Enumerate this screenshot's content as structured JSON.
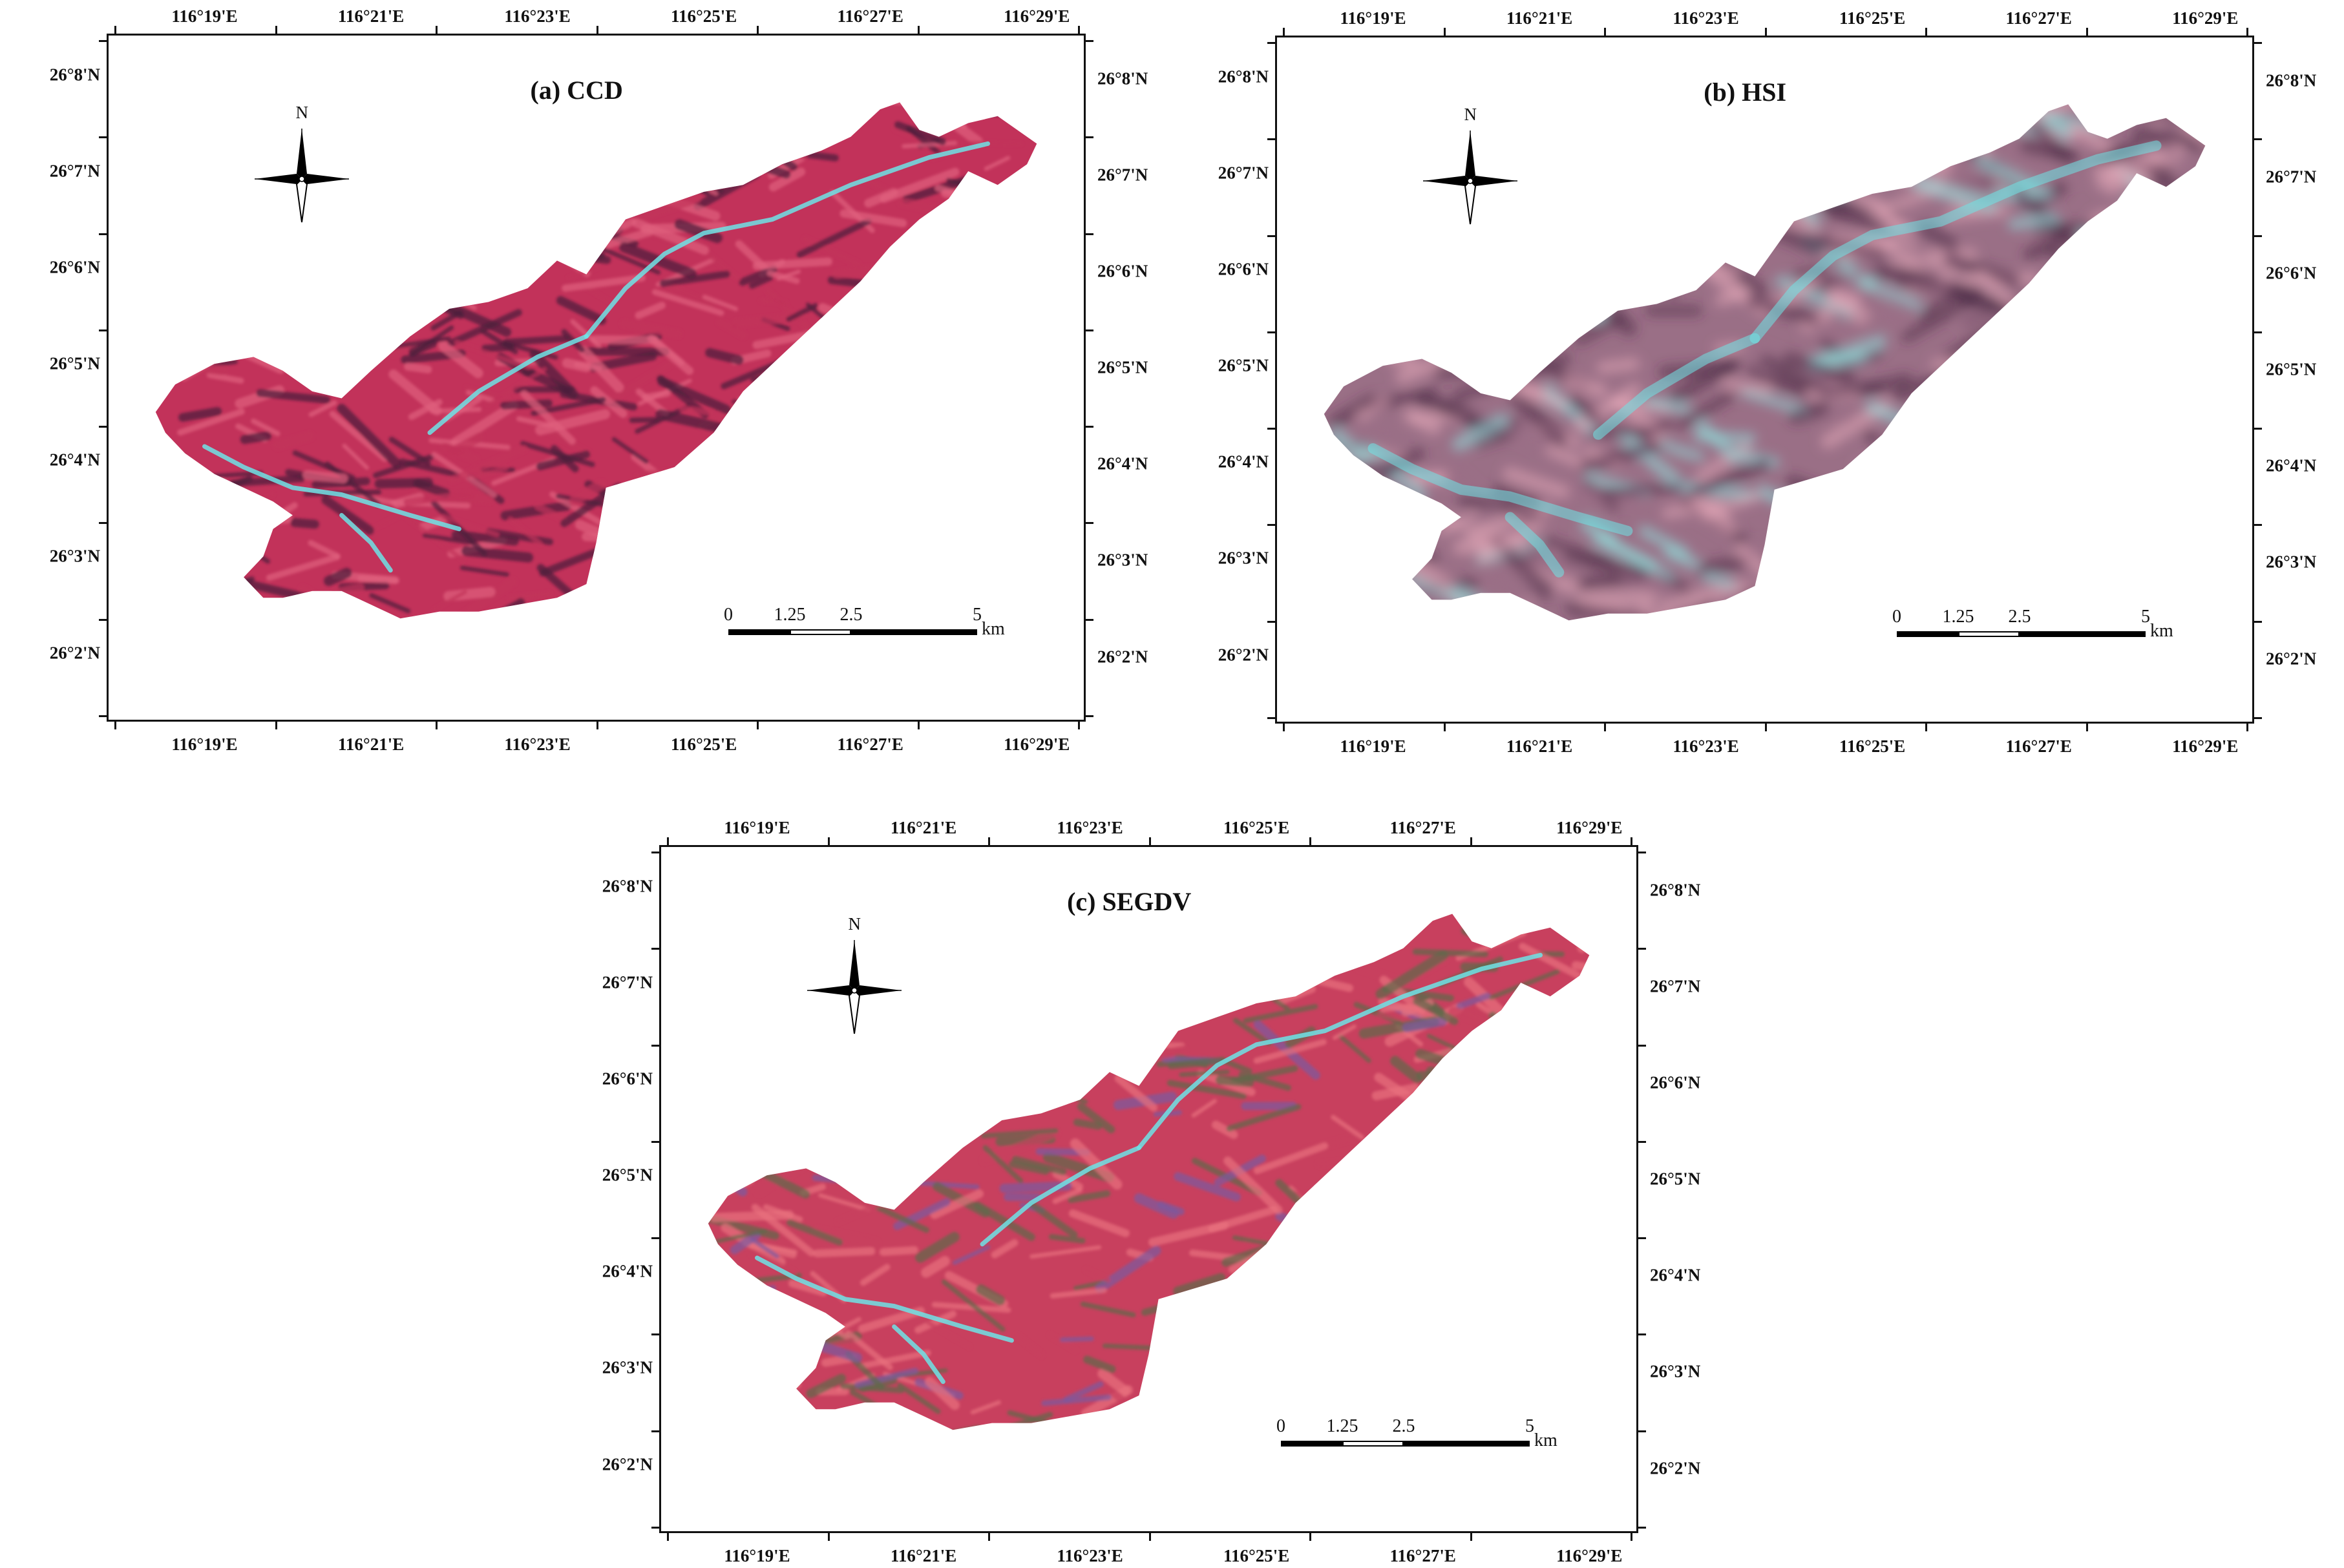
{
  "panels": [
    {
      "id": "a",
      "title": "(a) CCD",
      "style": "ccd",
      "lon_labels": [
        "116°19'E",
        "116°21'E",
        "116°23'E",
        "116°25'E",
        "116°27'E",
        "116°29'E"
      ],
      "lat_labels": [
        "26°8'N",
        "26°7'N",
        "26°6'N",
        "26°5'N",
        "26°4'N",
        "26°3'N",
        "26°2'N"
      ],
      "scale": {
        "ticks": [
          "0",
          "1.25",
          "2.5",
          "5"
        ],
        "unit": "km"
      },
      "north_label": "N"
    },
    {
      "id": "b",
      "title": "(b) HSI",
      "style": "hsi",
      "lon_labels": [
        "116°19'E",
        "116°21'E",
        "116°23'E",
        "116°25'E",
        "116°27'E",
        "116°29'E"
      ],
      "lat_labels": [
        "26°8'N",
        "26°7'N",
        "26°6'N",
        "26°5'N",
        "26°4'N",
        "26°3'N",
        "26°2'N"
      ],
      "scale": {
        "ticks": [
          "0",
          "1.25",
          "2.5",
          "5"
        ],
        "unit": "km"
      },
      "north_label": "N"
    },
    {
      "id": "c",
      "title": "(c) SEGDV",
      "style": "segdv",
      "lon_labels": [
        "116°19'E",
        "116°21'E",
        "116°23'E",
        "116°25'E",
        "116°27'E",
        "116°29'E"
      ],
      "lat_labels": [
        "26°8'N",
        "26°7'N",
        "26°6'N",
        "26°5'N",
        "26°4'N",
        "26°3'N",
        "26°2'N"
      ],
      "scale": {
        "ticks": [
          "0",
          "1.25",
          "2.5",
          "5"
        ],
        "unit": "km"
      },
      "north_label": "N"
    }
  ],
  "colors": {
    "ccd_base": "#c2325a",
    "ccd_shadow": "#4a1d3c",
    "hsi_base": "#9a6f86",
    "hsi_light": "#e3a8b8",
    "hsi_cyan": "#8fe0dc",
    "segdv_base": "#c8405e",
    "segdv_green": "#5e6a4a",
    "river_cyan": "#6fe3e6"
  }
}
